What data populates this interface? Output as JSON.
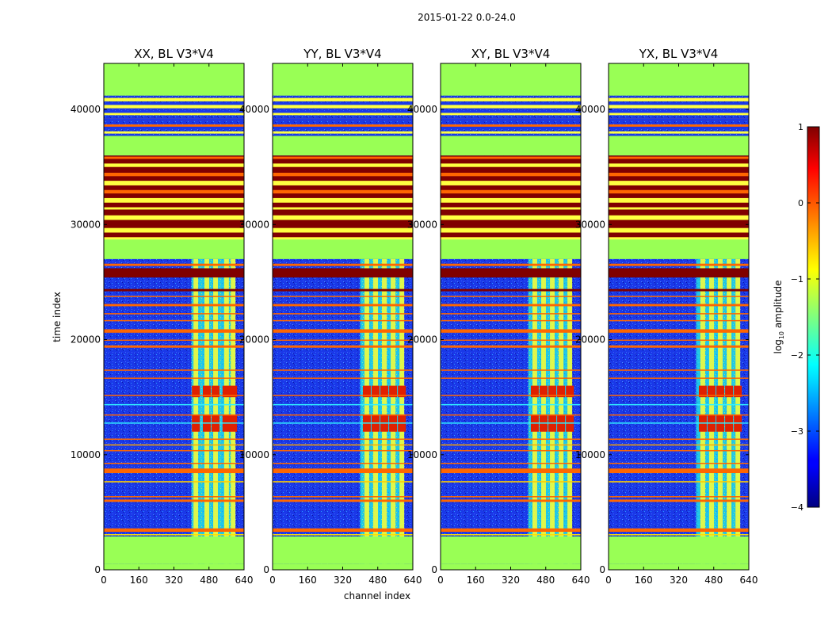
{
  "chart_data": {
    "type": "heatmap",
    "suptitle": "2015-01-22 0.0-24.0",
    "xlabel": "channel index",
    "ylabel": "time index",
    "xlim": [
      0,
      640
    ],
    "ylim": [
      0,
      44000
    ],
    "x_ticks": [
      0,
      160,
      320,
      480,
      640
    ],
    "y_ticks": [
      0,
      10000,
      20000,
      30000,
      40000
    ],
    "panels": [
      {
        "title": "XX, BL V3*V4",
        "hot_columns": [
          420,
          470,
          510,
          560,
          590
        ]
      },
      {
        "title": "YY, BL V3*V4",
        "hot_columns": [
          430,
          470,
          510,
          550,
          590
        ]
      },
      {
        "title": "XY, BL V3*V4",
        "hot_columns": [
          430,
          470,
          510,
          550,
          590
        ]
      },
      {
        "title": "YX, BL V3*V4",
        "hot_columns": [
          430,
          470,
          510,
          550,
          590
        ]
      }
    ],
    "signal_band": {
      "x_range": [
        400,
        600
      ]
    },
    "flagged_time_ranges": [
      [
        0,
        500
      ],
      [
        500,
        2900
      ],
      [
        36000,
        37700
      ],
      [
        41200,
        44000
      ]
    ],
    "colorbar": {
      "label_prefix": "log",
      "label_sub": "10",
      "label_suffix": " amplitude",
      "range": [
        -4,
        1
      ],
      "ticks": [
        "1",
        "0",
        "−1",
        "−2",
        "−3",
        "−4"
      ],
      "colormap": "jet"
    },
    "colors": {
      "background_noise": "#1a38e8",
      "flagged": "#99ff55",
      "high": "#800000",
      "orange": "#ff6600"
    }
  }
}
